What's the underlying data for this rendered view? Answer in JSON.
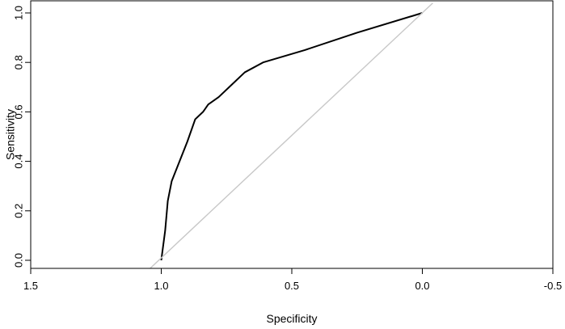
{
  "chart_data": {
    "type": "line",
    "title": "",
    "xlabel": "Specificity",
    "ylabel": "Sensitivity",
    "xlim": [
      1.5,
      -0.5
    ],
    "ylim": [
      0,
      1
    ],
    "x_ticks": [
      1.5,
      1.0,
      0.5,
      0.0,
      -0.5
    ],
    "x_tick_labels": [
      "1.5",
      "1.0",
      "0.5",
      "0.0",
      "-0.5"
    ],
    "y_ticks": [
      0.0,
      0.2,
      0.4,
      0.6,
      0.8,
      1.0
    ],
    "y_tick_labels": [
      "0.0",
      "0.2",
      "0.4",
      "0.6",
      "0.8",
      "1.0"
    ],
    "grid": false,
    "legend": "none",
    "series": [
      {
        "role": "roc-curve",
        "color": "#000000",
        "points": [
          [
            1.0,
            0.0
          ],
          [
            0.985,
            0.12
          ],
          [
            0.975,
            0.24
          ],
          [
            0.96,
            0.32
          ],
          [
            0.93,
            0.4
          ],
          [
            0.9,
            0.48
          ],
          [
            0.87,
            0.57
          ],
          [
            0.84,
            0.6
          ],
          [
            0.82,
            0.63
          ],
          [
            0.78,
            0.66
          ],
          [
            0.73,
            0.71
          ],
          [
            0.68,
            0.76
          ],
          [
            0.61,
            0.8
          ],
          [
            0.45,
            0.85
          ],
          [
            0.25,
            0.92
          ],
          [
            0.0,
            1.0
          ]
        ]
      },
      {
        "role": "reference-diagonal",
        "color": "#c8c8c8",
        "points": [
          [
            1.05,
            -0.04
          ],
          [
            -0.04,
            1.04
          ]
        ]
      }
    ],
    "colors": {
      "axis": "#000000",
      "curve": "#000000",
      "diagonal": "#c8c8c8"
    }
  }
}
